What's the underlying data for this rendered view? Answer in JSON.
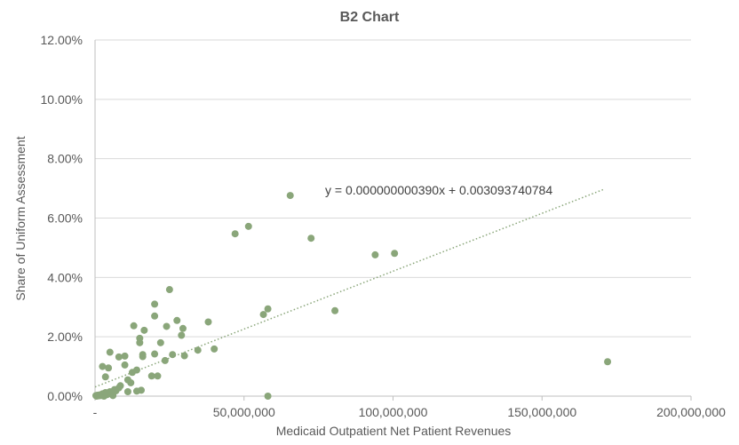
{
  "chart_data": {
    "type": "scatter",
    "title": "B2 Chart",
    "xlabel": "Medicaid Outpatient Net Patient Revenues",
    "ylabel": "Share of Uniform Assessment",
    "xlim": [
      0,
      200000000
    ],
    "ylim": [
      0,
      0.12
    ],
    "x_ticks": [
      0,
      50000000,
      100000000,
      150000000,
      200000000
    ],
    "x_tick_labels": [
      "-",
      "50,000,000",
      "100,000,000",
      "150,000,000",
      "200,000,000"
    ],
    "y_ticks": [
      0,
      0.02,
      0.04,
      0.06,
      0.08,
      0.1,
      0.12
    ],
    "y_tick_labels": [
      "0.00%",
      "2.00%",
      "4.00%",
      "6.00%",
      "8.00%",
      "10.00%",
      "12.00%"
    ],
    "grid": true,
    "legend": "none",
    "trendline": {
      "type": "linear",
      "slope": 3.9e-10,
      "intercept": 0.003093740784,
      "x_range": [
        0,
        171000000
      ],
      "equation_label": "y = 0.000000000390x + 0.003093740784"
    },
    "colors": {
      "marker": "#8aa67a",
      "trendline": "#8aa67a",
      "grid": "#d9d9d9",
      "text": "#595959",
      "title": "#595959"
    },
    "points": [
      {
        "x": 300000,
        "y": 0.0002
      },
      {
        "x": 500000,
        "y": 0.0
      },
      {
        "x": 800000,
        "y": 0.0003
      },
      {
        "x": 1200000,
        "y": 0.0001
      },
      {
        "x": 1500000,
        "y": 0.0004
      },
      {
        "x": 2000000,
        "y": 0.0002
      },
      {
        "x": 2500000,
        "y": 0.0008
      },
      {
        "x": 3000000,
        "y": 0.0
      },
      {
        "x": 3500000,
        "y": 0.0012
      },
      {
        "x": 4000000,
        "y": 0.0005
      },
      {
        "x": 5000000,
        "y": 0.0015
      },
      {
        "x": 6000000,
        "y": 0.0002
      },
      {
        "x": 6500000,
        "y": 0.0022
      },
      {
        "x": 7000000,
        "y": 0.0018
      },
      {
        "x": 8000000,
        "y": 0.0028
      },
      {
        "x": 8500000,
        "y": 0.0035
      },
      {
        "x": 2500000,
        "y": 0.01
      },
      {
        "x": 3500000,
        "y": 0.0065
      },
      {
        "x": 4500000,
        "y": 0.0095
      },
      {
        "x": 5000000,
        "y": 0.0148
      },
      {
        "x": 8000000,
        "y": 0.0132
      },
      {
        "x": 10000000,
        "y": 0.0135
      },
      {
        "x": 10000000,
        "y": 0.0105
      },
      {
        "x": 11000000,
        "y": 0.0055
      },
      {
        "x": 11000000,
        "y": 0.0015
      },
      {
        "x": 12000000,
        "y": 0.0045
      },
      {
        "x": 12500000,
        "y": 0.008
      },
      {
        "x": 13000000,
        "y": 0.0237
      },
      {
        "x": 14000000,
        "y": 0.0088
      },
      {
        "x": 14000000,
        "y": 0.0017
      },
      {
        "x": 15000000,
        "y": 0.0195
      },
      {
        "x": 15000000,
        "y": 0.018
      },
      {
        "x": 15500000,
        "y": 0.002
      },
      {
        "x": 16000000,
        "y": 0.014
      },
      {
        "x": 16000000,
        "y": 0.0133
      },
      {
        "x": 16500000,
        "y": 0.0222
      },
      {
        "x": 19000000,
        "y": 0.0068
      },
      {
        "x": 20000000,
        "y": 0.031
      },
      {
        "x": 20000000,
        "y": 0.027
      },
      {
        "x": 20000000,
        "y": 0.0142
      },
      {
        "x": 21000000,
        "y": 0.0068
      },
      {
        "x": 22000000,
        "y": 0.018
      },
      {
        "x": 23500000,
        "y": 0.012
      },
      {
        "x": 24000000,
        "y": 0.0235
      },
      {
        "x": 25000000,
        "y": 0.0359
      },
      {
        "x": 26000000,
        "y": 0.014
      },
      {
        "x": 27500000,
        "y": 0.0255
      },
      {
        "x": 29000000,
        "y": 0.0205
      },
      {
        "x": 29500000,
        "y": 0.0228
      },
      {
        "x": 30000000,
        "y": 0.0136
      },
      {
        "x": 34500000,
        "y": 0.0155
      },
      {
        "x": 38000000,
        "y": 0.025
      },
      {
        "x": 40000000,
        "y": 0.0159
      },
      {
        "x": 47000000,
        "y": 0.0547
      },
      {
        "x": 51500000,
        "y": 0.0572
      },
      {
        "x": 56500000,
        "y": 0.0275
      },
      {
        "x": 58000000,
        "y": 0.0294
      },
      {
        "x": 58000000,
        "y": 0.0
      },
      {
        "x": 65500000,
        "y": 0.0676
      },
      {
        "x": 72500000,
        "y": 0.0532
      },
      {
        "x": 80500000,
        "y": 0.0288
      },
      {
        "x": 94000000,
        "y": 0.0476
      },
      {
        "x": 100500000,
        "y": 0.0481
      },
      {
        "x": 172000000,
        "y": 0.0116
      }
    ]
  }
}
